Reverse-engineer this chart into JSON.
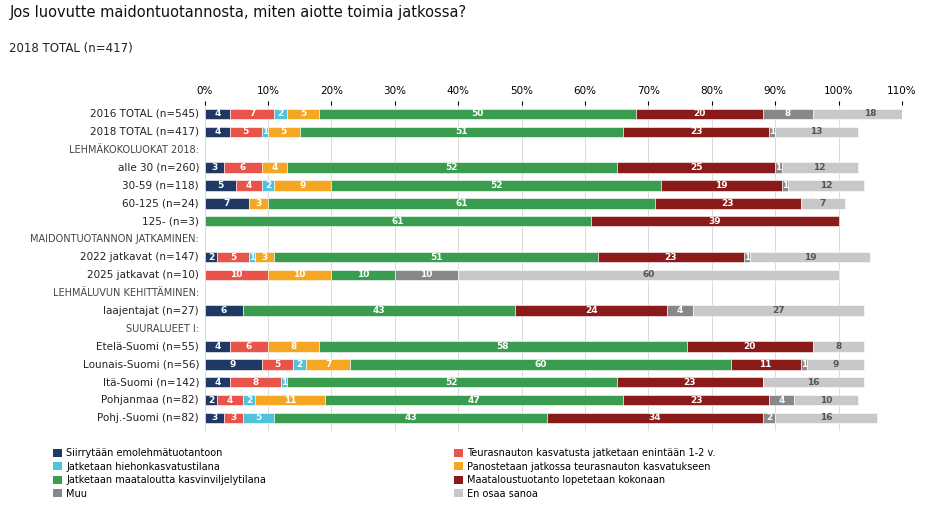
{
  "title": "Jos luovutte maidontuotannosta, miten aiotte toimia jatkossa?",
  "subtitle": "2018 TOTAL (n=417)",
  "categories": [
    "2016 TOTAL (n=545)",
    "2018 TOTAL (n=417)",
    "LEHMÄKOKOLUOKAT 2018:",
    "alle 30 (n=260)",
    "30-59 (n=118)",
    "60-125 (n=24)",
    "125- (n=3)",
    "MAIDONTUOTANNON JATKAMINEN:",
    "2022 jatkavat (n=147)",
    "2025 jatkavat (n=10)",
    "LEHMÄLUVUN KEHITTÄMINEN:",
    "laajentajat (n=27)",
    "SUURALUEET I:",
    "Etelä-Suomi (n=55)",
    "Lounais-Suomi (n=56)",
    "Itä-Suomi (n=142)",
    "Pohjanmaa (n=82)",
    "Pohj.-Suomi (n=82)"
  ],
  "header_rows": [
    2,
    7,
    10,
    12
  ],
  "segments": [
    [
      4,
      7,
      2,
      5,
      50,
      20,
      8,
      18
    ],
    [
      4,
      5,
      1,
      5,
      51,
      23,
      1,
      13
    ],
    [
      0,
      0,
      0,
      0,
      0,
      0,
      0,
      0
    ],
    [
      3,
      6,
      0,
      4,
      52,
      25,
      1,
      12
    ],
    [
      5,
      4,
      2,
      9,
      52,
      19,
      1,
      12
    ],
    [
      7,
      0,
      0,
      3,
      61,
      23,
      0,
      7
    ],
    [
      0,
      0,
      0,
      0,
      61,
      39,
      0,
      0
    ],
    [
      0,
      0,
      0,
      0,
      0,
      0,
      0,
      0
    ],
    [
      2,
      5,
      1,
      3,
      51,
      23,
      1,
      19
    ],
    [
      0,
      10,
      0,
      10,
      10,
      0,
      10,
      60
    ],
    [
      0,
      0,
      0,
      0,
      0,
      0,
      0,
      0
    ],
    [
      6,
      0,
      0,
      0,
      43,
      24,
      4,
      27
    ],
    [
      0,
      0,
      0,
      0,
      0,
      0,
      0,
      0
    ],
    [
      4,
      6,
      0,
      8,
      58,
      20,
      0,
      8
    ],
    [
      9,
      5,
      2,
      7,
      60,
      11,
      1,
      9
    ],
    [
      4,
      8,
      1,
      0,
      52,
      23,
      0,
      16
    ],
    [
      2,
      4,
      2,
      11,
      47,
      23,
      4,
      10
    ],
    [
      3,
      3,
      5,
      0,
      43,
      34,
      2,
      16
    ]
  ],
  "segment_colors": [
    "#1F3864",
    "#E8534A",
    "#4FC3D9",
    "#F5A623",
    "#3A9C4F",
    "#8B1A1A",
    "#888888",
    "#C8C8C8"
  ],
  "legend_left": [
    [
      "#1F3864",
      "Siirrytään emolehmätuotantoon"
    ],
    [
      "#4FC3D9",
      "Jatketaan hiehonkasvatustilana"
    ],
    [
      "#3A9C4F",
      "Jatketaan maataloutta kasvinviljelytilana"
    ],
    [
      "#888888",
      "Muu"
    ]
  ],
  "legend_right": [
    [
      "#E8534A",
      "Teurasnauton kasvatusta jatketaan enintään 1-2 v."
    ],
    [
      "#F5A623",
      "Panostetaan jatkossa teurasnauton kasvatukseen"
    ],
    [
      "#8B1A1A",
      "Maataloustuotanto lopetetaan kokonaan"
    ],
    [
      "#C8C8C8",
      "En osaa sanoa"
    ]
  ],
  "xlim": [
    0,
    110
  ],
  "xticks": [
    0,
    10,
    20,
    30,
    40,
    50,
    60,
    70,
    80,
    90,
    100,
    110
  ],
  "xtick_labels": [
    "0%",
    "10%",
    "20%",
    "30%",
    "40%",
    "50%",
    "60%",
    "70%",
    "80%",
    "90%",
    "100%",
    "110%"
  ]
}
